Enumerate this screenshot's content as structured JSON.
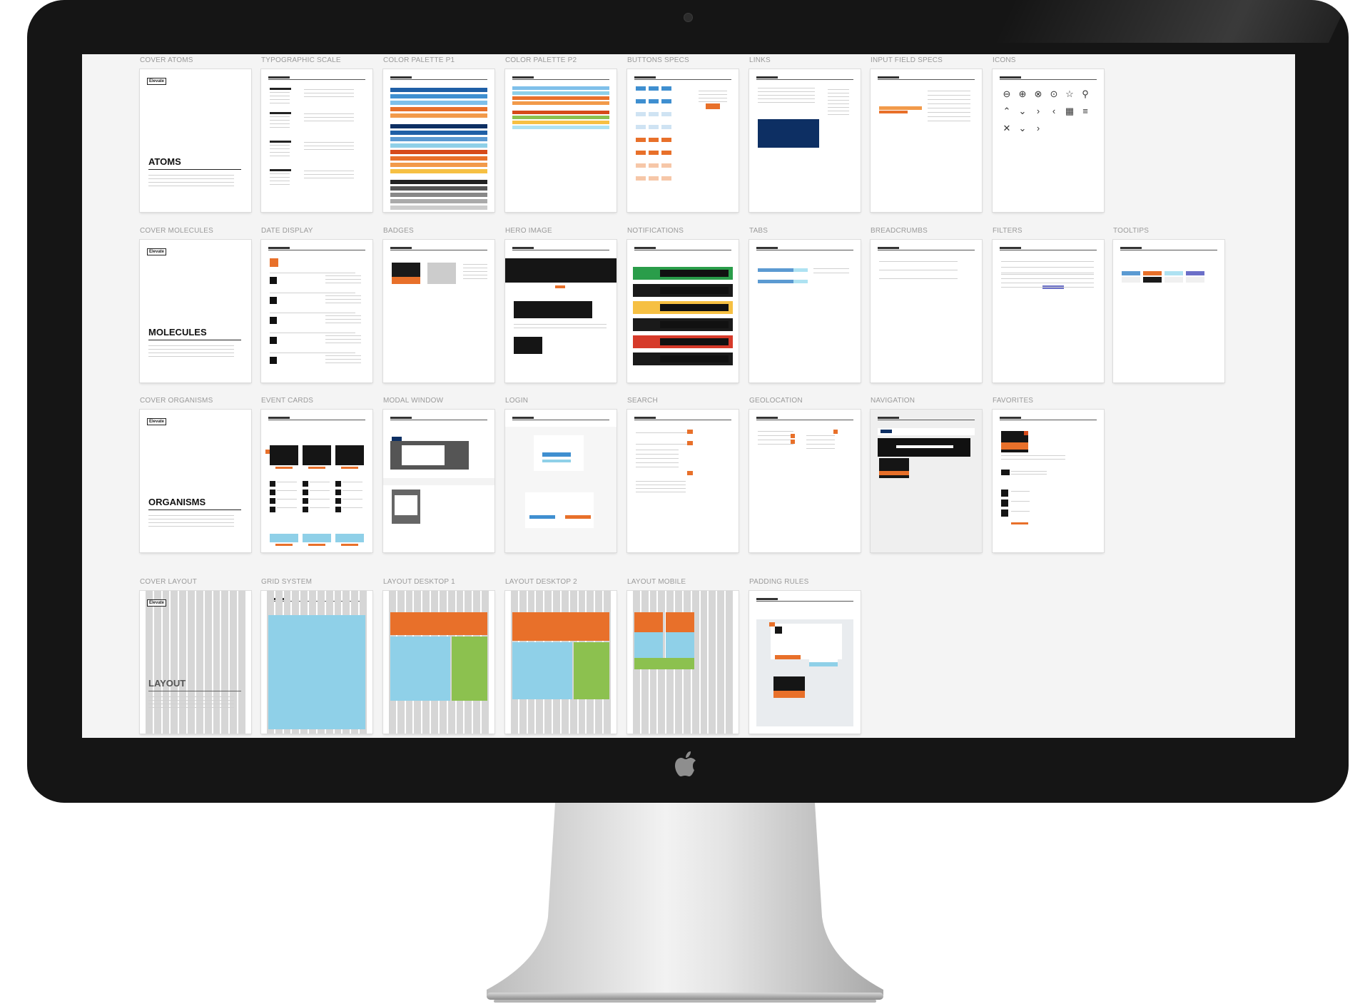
{
  "screen": {
    "rows": [
      {
        "cards": [
          {
            "title": "COVER ATOMS",
            "type": "cover",
            "heading": "ATOMS",
            "brand": "Elevate"
          },
          {
            "title": "TYPOGRAPHIC SCALE",
            "type": "typo"
          },
          {
            "title": "COLOR PALETTE P1",
            "type": "palette1"
          },
          {
            "title": "COLOR PALETTE P2",
            "type": "palette2"
          },
          {
            "title": "BUTTONS SPECS",
            "type": "buttons"
          },
          {
            "title": "LINKS",
            "type": "links"
          },
          {
            "title": "INPUT FIELD SPECS",
            "type": "inputs"
          },
          {
            "title": "ICONS",
            "type": "icons"
          }
        ]
      },
      {
        "cards": [
          {
            "title": "COVER MOLECULES",
            "type": "cover",
            "heading": "MOLECULES",
            "brand": "Elevate"
          },
          {
            "title": "DATE DISPLAY",
            "type": "date"
          },
          {
            "title": "BADGES",
            "type": "badges"
          },
          {
            "title": "HERO IMAGE",
            "type": "hero"
          },
          {
            "title": "NOTIFICATIONS",
            "type": "notifications"
          },
          {
            "title": "TABS",
            "type": "tabs"
          },
          {
            "title": "BREADCRUMBS",
            "type": "breadcrumbs"
          },
          {
            "title": "FILTERS",
            "type": "filters"
          },
          {
            "title": "TOOLTIPS",
            "type": "tooltips"
          }
        ]
      },
      {
        "cards": [
          {
            "title": "COVER ORGANISMS",
            "type": "cover",
            "heading": "ORGANISMS",
            "brand": "Elevate"
          },
          {
            "title": "EVENT CARDS",
            "type": "events"
          },
          {
            "title": "MODAL WINDOW",
            "type": "modal"
          },
          {
            "title": "LOGIN",
            "type": "login"
          },
          {
            "title": "SEARCH",
            "type": "search"
          },
          {
            "title": "GEOLOCATION",
            "type": "geo"
          },
          {
            "title": "NAVIGATION",
            "type": "navigation"
          },
          {
            "title": "FAVORITES",
            "type": "favorites"
          }
        ]
      },
      {
        "cards": [
          {
            "title": "COVER LAYOUT",
            "type": "cover-layout",
            "heading": "LAYOUT",
            "brand": "Elevate"
          },
          {
            "title": "GRID SYSTEM",
            "type": "grid"
          },
          {
            "title": "LAYOUT DESKTOP 1",
            "type": "layout1"
          },
          {
            "title": "LAYOUT DESKTOP 2",
            "type": "layout2"
          },
          {
            "title": "LAYOUT MOBILE",
            "type": "layoutm"
          },
          {
            "title": "PADDING RULES",
            "type": "padding"
          }
        ]
      }
    ]
  },
  "colors": {
    "bezel": "#151515",
    "orange": "#e8702a",
    "blue": "#3f8fd0",
    "light_blue": "#8fd0e8",
    "navy": "#0d2f63",
    "green": "#8cc14f",
    "dark": "#1a1a1a"
  },
  "icons": [
    "minus-circle",
    "plus-circle",
    "x-circle",
    "more-circle",
    "star",
    "map-pin",
    "chevron-up",
    "chevron-down",
    "chevron-right",
    "chevron-left",
    "calendar",
    "menu",
    "close",
    "chevron-down",
    "chevron-right"
  ]
}
